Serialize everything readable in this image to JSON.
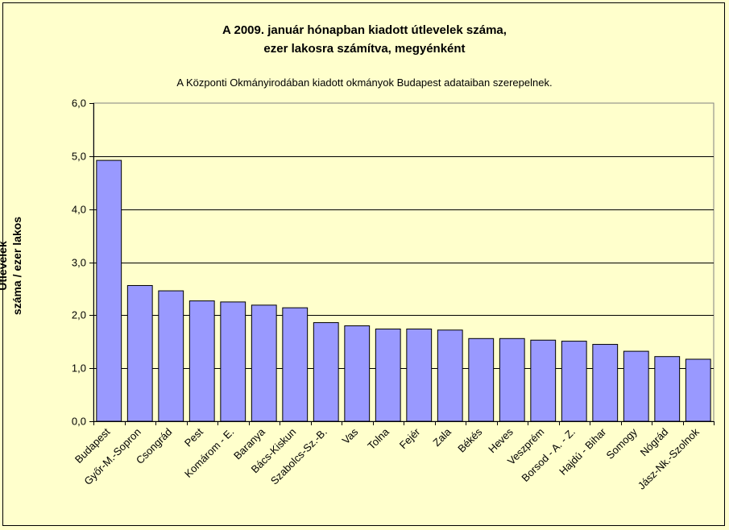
{
  "chart_data": {
    "type": "bar",
    "title_line1": "A 2009. január hónapban kiadott útlevelek száma,",
    "title_line2": "ezer lakosra számítva, megyénként",
    "subtitle": "A Központi Okmányirodában kiadott okmányok Budapest adataiban szerepelnek.",
    "ylabel_line1": "Útlevelek",
    "ylabel_line2": "száma / ezer lakos",
    "xlabel": "",
    "ylim": [
      0,
      6
    ],
    "yticks": [
      "0,0",
      "1,0",
      "2,0",
      "3,0",
      "4,0",
      "5,0",
      "6,0"
    ],
    "grid": true,
    "bar_color": "#9999FF",
    "plot_bg": "#FFFFCC",
    "categories": [
      "Budapest",
      "Győr-M.-Sopron",
      "Csongrád",
      "Pest",
      "Komárom - E.",
      "Baranya",
      "Bács-Kiskun",
      "Szabolcs-Sz.-B.",
      "Vas",
      "Tolna",
      "Fejér",
      "Zala",
      "Békés",
      "Heves",
      "Veszprém",
      "Borsod - A. - Z.",
      "Hajdú - Bihar",
      "Somogy",
      "Nógrád",
      "Jász-Nk.-Szolnok"
    ],
    "values": [
      4.92,
      2.56,
      2.46,
      2.27,
      2.25,
      2.19,
      2.14,
      1.86,
      1.8,
      1.74,
      1.74,
      1.72,
      1.56,
      1.56,
      1.53,
      1.51,
      1.45,
      1.32,
      1.22,
      1.17
    ]
  }
}
